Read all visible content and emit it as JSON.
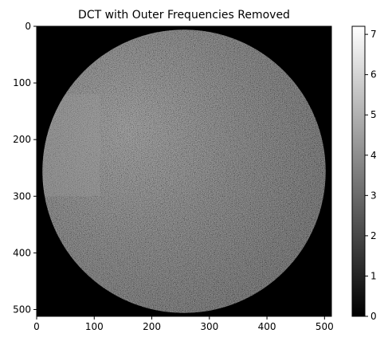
{
  "chart_data": {
    "type": "heatmap",
    "title": "DCT with Outer Frequencies Removed",
    "xlabel": "",
    "ylabel": "",
    "colormap": "gray",
    "image_size": [
      512,
      512
    ],
    "xlim": [
      0,
      512
    ],
    "ylim": [
      512,
      0
    ],
    "x_ticks": [
      0,
      100,
      200,
      300,
      400,
      500
    ],
    "y_ticks": [
      0,
      100,
      200,
      300,
      400,
      500
    ],
    "mask": {
      "shape": "circle",
      "center": [
        256,
        256
      ],
      "radius": 250
    },
    "colorbar": {
      "range": [
        0,
        7.2
      ],
      "ticks": [
        0,
        1,
        2,
        3,
        4,
        5,
        6,
        7
      ]
    },
    "colors": {
      "inside_mean": "#5a5a5a",
      "outside": "#000000"
    }
  }
}
